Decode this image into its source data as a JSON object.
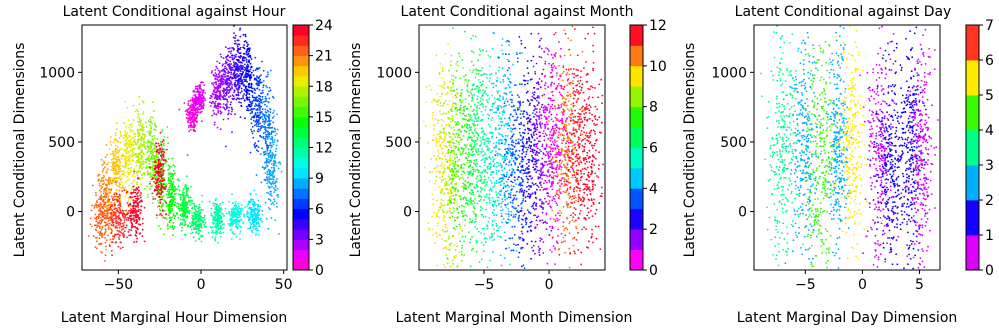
{
  "chart_data": [
    {
      "type": "scatter",
      "title": "Latent Conditional against Hour",
      "xlabel": "Latent Marginal Hour Dimension",
      "ylabel": "Latent Conditional Dimensions",
      "xlim": [
        -72,
        52
      ],
      "ylim": [
        -420,
        1340
      ],
      "xticks": [
        -50,
        0,
        50
      ],
      "yticks": [
        0,
        500,
        1000
      ],
      "colorbar": {
        "min": 0,
        "max": 24,
        "ticks": [
          0,
          3,
          6,
          9,
          12,
          15,
          18,
          21,
          24
        ],
        "n_colors": 24
      },
      "clusters": [
        {
          "value": 0,
          "x": -5,
          "y": 700,
          "sx": 2.0,
          "sy": 70
        },
        {
          "value": 1,
          "x": -1,
          "y": 810,
          "sx": 1.5,
          "sy": 50
        },
        {
          "value": 2,
          "x": 10,
          "y": 850,
          "sx": 2.0,
          "sy": 90
        },
        {
          "value": 3,
          "x": 16,
          "y": 930,
          "sx": 2.0,
          "sy": 120
        },
        {
          "value": 4,
          "x": 22,
          "y": 1020,
          "sx": 2.0,
          "sy": 130
        },
        {
          "value": 5,
          "x": 28,
          "y": 980,
          "sx": 2.0,
          "sy": 140
        },
        {
          "value": 6,
          "x": 34,
          "y": 780,
          "sx": 2.0,
          "sy": 150
        },
        {
          "value": 7,
          "x": 40,
          "y": 600,
          "sx": 2.0,
          "sy": 160
        },
        {
          "value": 8,
          "x": 43,
          "y": 300,
          "sx": 2.0,
          "sy": 160
        },
        {
          "value": 9,
          "x": 32,
          "y": -20,
          "sx": 2.0,
          "sy": 60
        },
        {
          "value": 10,
          "x": 21,
          "y": -40,
          "sx": 2.0,
          "sy": 60
        },
        {
          "value": 11,
          "x": 10,
          "y": -50,
          "sx": 2.0,
          "sy": 60
        },
        {
          "value": 12,
          "x": -2,
          "y": -60,
          "sx": 2.0,
          "sy": 60
        },
        {
          "value": 13,
          "x": -10,
          "y": 30,
          "sx": 2.0,
          "sy": 80
        },
        {
          "value": 14,
          "x": -18,
          "y": 100,
          "sx": 2.0,
          "sy": 110
        },
        {
          "value": 15,
          "x": -24,
          "y": 240,
          "sx": 2.0,
          "sy": 130
        },
        {
          "value": 16,
          "x": -30,
          "y": 400,
          "sx": 2.0,
          "sy": 130
        },
        {
          "value": 17,
          "x": -37,
          "y": 460,
          "sx": 2.0,
          "sy": 130
        },
        {
          "value": 18,
          "x": -44,
          "y": 400,
          "sx": 2.0,
          "sy": 130
        },
        {
          "value": 19,
          "x": -51,
          "y": 320,
          "sx": 2.0,
          "sy": 130
        },
        {
          "value": 20,
          "x": -57,
          "y": 100,
          "sx": 2.5,
          "sy": 140
        },
        {
          "value": 21,
          "x": -60,
          "y": -40,
          "sx": 3.0,
          "sy": 110
        },
        {
          "value": 22,
          "x": -50,
          "y": -60,
          "sx": 3.0,
          "sy": 100
        },
        {
          "value": 23,
          "x": -40,
          "y": 10,
          "sx": 2.5,
          "sy": 90
        },
        {
          "value": 24,
          "x": -25,
          "y": 280,
          "sx": 2.0,
          "sy": 110
        }
      ]
    },
    {
      "type": "scatter",
      "title": "Latent Conditional against Month",
      "xlabel": "Latent Marginal Month Dimension",
      "ylabel": "Latent Conditional Dimensions",
      "xlim": [
        -10,
        4.3
      ],
      "ylim": [
        -420,
        1340
      ],
      "xticks": [
        -5,
        0
      ],
      "yticks": [
        0,
        500,
        1000
      ],
      "colorbar": {
        "min": 0,
        "max": 12,
        "ticks": [
          0,
          2,
          4,
          6,
          8,
          10,
          12
        ],
        "n_colors": 12
      },
      "clusters": [
        {
          "value": 12,
          "x": 3.0,
          "y": 400,
          "sx": 0.5,
          "sy": 380
        },
        {
          "value": 11,
          "x": 2.0,
          "y": 450,
          "sx": 0.5,
          "sy": 380
        },
        {
          "value": 10,
          "x": 1.2,
          "y": 450,
          "sx": 0.5,
          "sy": 380
        },
        {
          "value": 9,
          "x": -8.2,
          "y": 350,
          "sx": 0.6,
          "sy": 380
        },
        {
          "value": 8,
          "x": -7.4,
          "y": 350,
          "sx": 0.6,
          "sy": 380
        },
        {
          "value": 7,
          "x": -6.5,
          "y": 350,
          "sx": 0.6,
          "sy": 380
        },
        {
          "value": 6,
          "x": -5.5,
          "y": 450,
          "sx": 0.6,
          "sy": 380
        },
        {
          "value": 5,
          "x": -4.6,
          "y": 420,
          "sx": 0.6,
          "sy": 380
        },
        {
          "value": 4,
          "x": -3.5,
          "y": 400,
          "sx": 0.5,
          "sy": 380
        },
        {
          "value": 3,
          "x": -2.5,
          "y": 380,
          "sx": 0.5,
          "sy": 380
        },
        {
          "value": 2,
          "x": -1.5,
          "y": 400,
          "sx": 0.5,
          "sy": 380
        },
        {
          "value": 1,
          "x": -0.5,
          "y": 450,
          "sx": 0.5,
          "sy": 380
        },
        {
          "value": 0,
          "x": 0.4,
          "y": 450,
          "sx": 0.5,
          "sy": 380
        }
      ]
    },
    {
      "type": "scatter",
      "title": "Latent Conditional against Day",
      "xlabel": "Latent Marginal Day Dimension",
      "ylabel": "Latent Conditional Dimensions",
      "xlim": [
        -9.5,
        6.8
      ],
      "ylim": [
        -420,
        1340
      ],
      "xticks": [
        -5,
        0,
        5
      ],
      "yticks": [
        0,
        500,
        1000
      ],
      "colorbar": {
        "min": 0,
        "max": 7,
        "ticks": [
          0,
          1,
          2,
          3,
          4,
          5,
          6,
          7
        ],
        "n_colors": 7
      },
      "clusters": [
        {
          "value": 3,
          "x": -7.0,
          "y": 450,
          "sx": 0.7,
          "sy": 400
        },
        {
          "value": 2,
          "x": -5.0,
          "y": 400,
          "sx": 0.6,
          "sy": 400
        },
        {
          "value": 4,
          "x": -3.6,
          "y": 400,
          "sx": 0.6,
          "sy": 420
        },
        {
          "value": 2,
          "x": -2.1,
          "y": 450,
          "sx": 0.4,
          "sy": 380
        },
        {
          "value": 5,
          "x": -0.9,
          "y": 450,
          "sx": 0.5,
          "sy": 400
        },
        {
          "value": 0,
          "x": 1.6,
          "y": 400,
          "sx": 0.6,
          "sy": 400
        },
        {
          "value": 1,
          "x": 2.5,
          "y": 350,
          "sx": 0.6,
          "sy": 380
        },
        {
          "value": 1,
          "x": 4.3,
          "y": 450,
          "sx": 0.5,
          "sy": 400
        },
        {
          "value": 0,
          "x": 5.2,
          "y": 400,
          "sx": 0.5,
          "sy": 400
        }
      ]
    }
  ]
}
